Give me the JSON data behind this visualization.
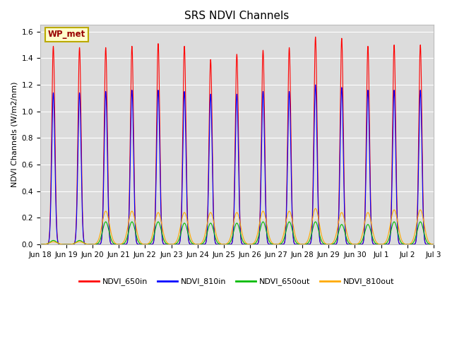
{
  "title": "SRS NDVI Channels",
  "ylabel": "NDVI Channels (W/m2/nm)",
  "annotation": "WP_met",
  "ylim": [
    0.0,
    1.65
  ],
  "yticks": [
    0.0,
    0.2,
    0.4,
    0.6,
    0.8,
    1.0,
    1.2,
    1.4,
    1.6
  ],
  "colors": {
    "NDVI_650in": "#ff0000",
    "NDVI_810in": "#0000ff",
    "NDVI_650out": "#00bb00",
    "NDVI_810out": "#ffaa00"
  },
  "plot_bg": "#dcdcdc",
  "line_width": 0.8,
  "num_days": 15,
  "peak_650in": [
    1.49,
    1.48,
    1.48,
    1.49,
    1.51,
    1.49,
    1.39,
    1.43,
    1.46,
    1.48,
    1.56,
    1.55,
    1.49,
    1.5,
    1.5
  ],
  "peak_810in": [
    1.14,
    1.14,
    1.15,
    1.16,
    1.16,
    1.15,
    1.13,
    1.13,
    1.15,
    1.15,
    1.2,
    1.18,
    1.16,
    1.16,
    1.16
  ],
  "peak_650out": [
    0.03,
    0.03,
    0.17,
    0.17,
    0.17,
    0.16,
    0.16,
    0.16,
    0.17,
    0.17,
    0.17,
    0.15,
    0.15,
    0.17,
    0.17
  ],
  "peak_810out": [
    0.02,
    0.02,
    0.25,
    0.25,
    0.24,
    0.24,
    0.24,
    0.24,
    0.25,
    0.25,
    0.27,
    0.24,
    0.24,
    0.26,
    0.26
  ],
  "x_tick_labels": [
    "Jun 18",
    "Jun 19",
    "Jun 20",
    "Jun 21",
    "Jun 22",
    "Jun 23",
    "Jun 24",
    "Jun 25",
    "Jun 26",
    "Jun 27",
    "Jun 28",
    "Jun 29",
    "Jun 30",
    "Jul 1",
    "Jul 2",
    "Jul 3"
  ],
  "title_fontsize": 11,
  "label_fontsize": 8,
  "tick_fontsize": 7.5
}
